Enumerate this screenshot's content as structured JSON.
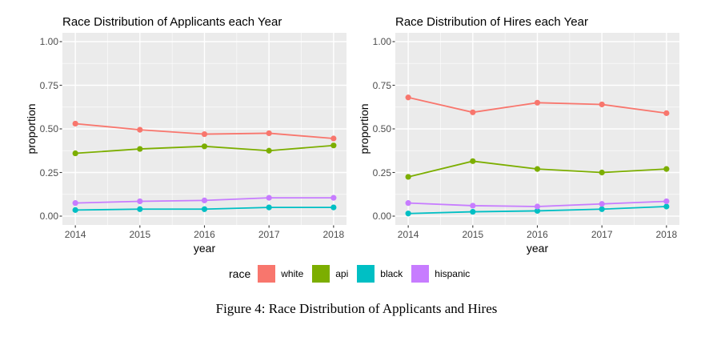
{
  "page": {
    "background": "#ffffff",
    "caption": "Figure 4: Race Distribution of Applicants and Hires"
  },
  "legend": {
    "title": "race",
    "position": "bottom",
    "items": [
      {
        "label": "white",
        "color": "#F8766D"
      },
      {
        "label": "api",
        "color": "#7CAE00"
      },
      {
        "label": "black",
        "color": "#00BFC4"
      },
      {
        "label": "hispanic",
        "color": "#C77CFF"
      }
    ]
  },
  "chart_data": [
    {
      "type": "line",
      "title": "Race Distribution of Applicants each Year",
      "xlabel": "year",
      "ylabel": "proportion",
      "x": [
        "2014",
        "2015",
        "2016",
        "2017",
        "2018"
      ],
      "y_ticks": [
        "1.00",
        "0.75",
        "0.50",
        "0.25",
        "0.00"
      ],
      "ylim": [
        0,
        1
      ],
      "grid": true,
      "panel_bg": "#EBEBEB",
      "grid_color": "#FFFFFF",
      "tick_color": "#333333",
      "series": [
        {
          "name": "white",
          "color": "#F8766D",
          "values": [
            0.53,
            0.495,
            0.47,
            0.475,
            0.445
          ]
        },
        {
          "name": "api",
          "color": "#7CAE00",
          "values": [
            0.36,
            0.385,
            0.4,
            0.375,
            0.405
          ]
        },
        {
          "name": "black",
          "color": "#00BFC4",
          "values": [
            0.035,
            0.04,
            0.04,
            0.05,
            0.05
          ]
        },
        {
          "name": "hispanic",
          "color": "#C77CFF",
          "values": [
            0.075,
            0.085,
            0.09,
            0.105,
            0.105
          ]
        }
      ]
    },
    {
      "type": "line",
      "title": "Race Distribution of Hires each Year",
      "xlabel": "year",
      "ylabel": "proportion",
      "x": [
        "2014",
        "2015",
        "2016",
        "2017",
        "2018"
      ],
      "y_ticks": [
        "1.00",
        "0.75",
        "0.50",
        "0.25",
        "0.00"
      ],
      "ylim": [
        0,
        1
      ],
      "grid": true,
      "panel_bg": "#EBEBEB",
      "grid_color": "#FFFFFF",
      "tick_color": "#333333",
      "series": [
        {
          "name": "white",
          "color": "#F8766D",
          "values": [
            0.68,
            0.595,
            0.65,
            0.64,
            0.59
          ]
        },
        {
          "name": "api",
          "color": "#7CAE00",
          "values": [
            0.225,
            0.315,
            0.27,
            0.25,
            0.27
          ]
        },
        {
          "name": "black",
          "color": "#00BFC4",
          "values": [
            0.015,
            0.025,
            0.03,
            0.04,
            0.055
          ]
        },
        {
          "name": "hispanic",
          "color": "#C77CFF",
          "values": [
            0.075,
            0.06,
            0.055,
            0.07,
            0.085
          ]
        }
      ]
    }
  ]
}
